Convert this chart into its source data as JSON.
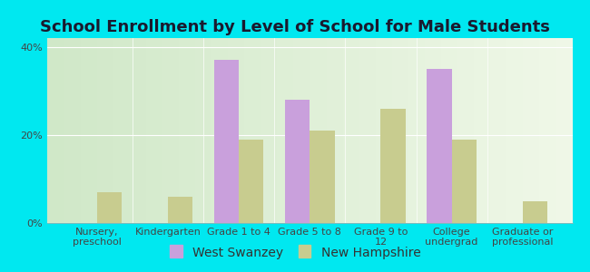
{
  "title": "School Enrollment by Level of School for Male Students",
  "categories": [
    "Nursery,\npreschool",
    "Kindergarten",
    "Grade 1 to 4",
    "Grade 5 to 8",
    "Grade 9 to\n12",
    "College\nundergrad",
    "Graduate or\nprofessional"
  ],
  "west_swanzey": [
    0,
    0,
    37,
    28,
    0,
    35,
    0
  ],
  "new_hampshire": [
    7,
    6,
    19,
    21,
    26,
    19,
    5
  ],
  "bar_color_ws": "#c9a0dc",
  "bar_color_nh": "#c8cc8f",
  "background_outer": "#00e8f0",
  "background_inner_left": "#d0e8c8",
  "background_inner_right": "#f0f8e8",
  "title_fontsize": 13,
  "tick_fontsize": 8,
  "legend_fontsize": 10,
  "ylim": [
    0,
    42
  ],
  "yticks": [
    0,
    20,
    40
  ],
  "ytick_labels": [
    "0%",
    "20%",
    "40%"
  ],
  "bar_width": 0.35,
  "legend_ws": "West Swanzey",
  "legend_nh": "New Hampshire"
}
